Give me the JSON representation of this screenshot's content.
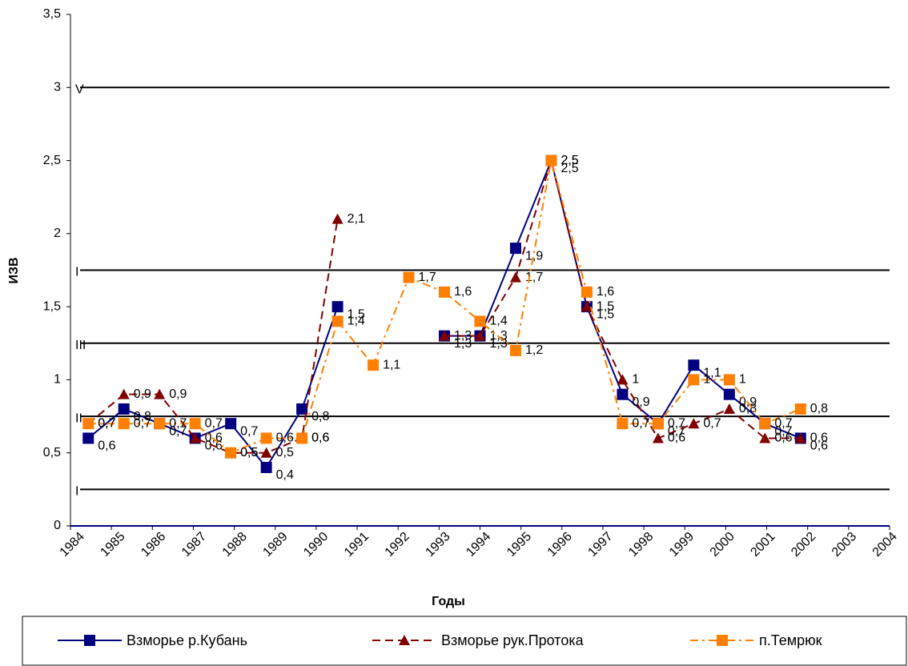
{
  "chart_data": {
    "type": "line",
    "y_label": "ИЗВ",
    "x_label": "Годы",
    "categories": [
      "1984",
      "1985",
      "1986",
      "1987",
      "1988",
      "1989",
      "1990",
      "1991",
      "1992",
      "1993",
      "1994",
      "1995",
      "1996",
      "1997",
      "1998",
      "1999",
      "2000",
      "2001",
      "2002",
      "2003",
      "2004"
    ],
    "ylim": [
      0,
      3.5
    ],
    "yticks": [
      0,
      {
        "value": 0.5,
        "label": "0,5"
      },
      1,
      {
        "value": 1.5,
        "label": "1,5"
      },
      2,
      {
        "value": 2.5,
        "label": "2,5"
      },
      3,
      {
        "value": 3.5,
        "label": "3,5"
      }
    ],
    "thresholds": [
      {
        "value": 0.25,
        "label": "I"
      },
      {
        "value": 0.75,
        "label": "II"
      },
      {
        "value": 1.25,
        "label": "III"
      },
      {
        "value": 1.75,
        "label": "I"
      },
      {
        "value": 3,
        "label": "V"
      }
    ],
    "series": [
      {
        "name": "Взморье р.Кубань",
        "color": "#000080",
        "marker": "square",
        "dash": "solid",
        "values": [
          0.6,
          0.8,
          0.7,
          0.6,
          0.7,
          0.4,
          0.8,
          1.5,
          null,
          null,
          1.3,
          1.3,
          1.9,
          2.5,
          1.5,
          0.9,
          0.7,
          1.1,
          0.9,
          0.7,
          0.6
        ],
        "value_labels": [
          "0,6",
          "0,8",
          "0,7",
          "0,6",
          "0,7",
          "0,4",
          "0,8",
          "1,5",
          null,
          null,
          "1,3",
          "1,3",
          "1,9",
          "2,5",
          "1,5",
          "0,9",
          "0,7",
          "1,1",
          "0,9",
          "0,7",
          "0,6"
        ]
      },
      {
        "name": "Взморье рук.Протока",
        "color": "#800000",
        "marker": "triangle",
        "dash": "dashed",
        "values": [
          0.7,
          0.9,
          0.9,
          0.6,
          0.5,
          0.5,
          0.6,
          2.1,
          null,
          null,
          1.3,
          1.3,
          1.7,
          2.5,
          1.5,
          1,
          0.6,
          0.7,
          0.8,
          0.6,
          0.6
        ],
        "value_labels": [
          "0,7",
          "0,9",
          "0,9",
          "0,6",
          "0,5",
          "0,5",
          "0,6",
          "2,1",
          null,
          null,
          "1,3",
          "1,3",
          "1,7",
          "2,5",
          "1,5",
          "1",
          "0,6",
          "0,7",
          "0,8",
          "0,6",
          "0,6"
        ]
      },
      {
        "name": "п.Темрюк",
        "color": "#ff8000",
        "marker": "square",
        "dash": "dashdot",
        "values": [
          0.7,
          0.7,
          0.7,
          0.7,
          0.5,
          0.6,
          0.6,
          1.4,
          1.1,
          1.7,
          1.6,
          1.4,
          1.2,
          2.5,
          1.6,
          0.7,
          0.7,
          1,
          1,
          0.7,
          0.8
        ],
        "value_labels": [
          "0,7",
          "0,7",
          "0,7",
          "0,7",
          "0,5",
          "0,6",
          "0,6",
          "1,4",
          "1,1",
          "1,7",
          "1,6",
          "1,4",
          "1,2",
          "2,5",
          "1,6",
          "0,7",
          "0,7",
          "1",
          "1",
          "0,7",
          "0,8"
        ]
      }
    ]
  }
}
